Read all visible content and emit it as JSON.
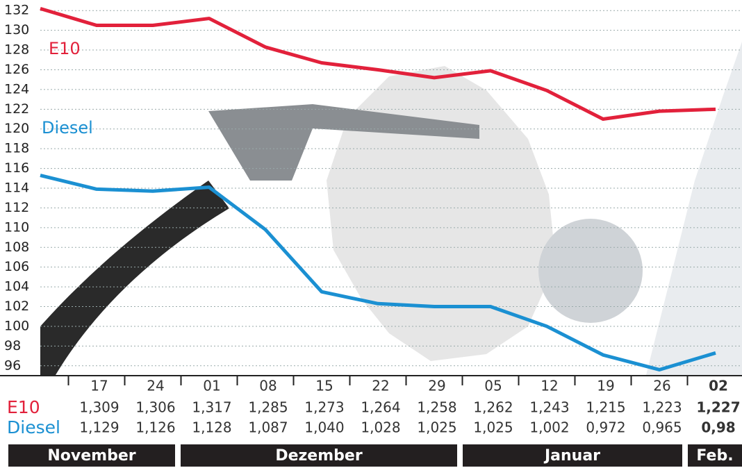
{
  "chart_data": {
    "type": "line",
    "categories": [
      null,
      "17",
      "24",
      "01",
      "08",
      "15",
      "22",
      "29",
      "05",
      "12",
      "19",
      "26",
      "02"
    ],
    "series": [
      {
        "name": "E10",
        "color": "#e2213b",
        "values": [
          132.2,
          130.5,
          130.5,
          131.2,
          128.3,
          126.7,
          126.0,
          125.2,
          125.9,
          123.9,
          121.0,
          121.8,
          122.0
        ]
      },
      {
        "name": "Diesel",
        "color": "#1b90d2",
        "values": [
          115.3,
          113.9,
          113.7,
          114.1,
          109.8,
          103.5,
          102.3,
          102.0,
          102.0,
          100.0,
          97.1,
          95.6,
          97.3
        ]
      }
    ],
    "ylim": [
      95,
      133
    ],
    "yticks": [
      96,
      98,
      100,
      102,
      104,
      106,
      108,
      110,
      112,
      114,
      116,
      118,
      120,
      122,
      124,
      126,
      128,
      130,
      132
    ],
    "grid": true
  },
  "table": {
    "rows": [
      {
        "label": "E10",
        "values": [
          "1,309",
          "1,306",
          "1,317",
          "1,285",
          "1,273",
          "1,264",
          "1,258",
          "1,262",
          "1,243",
          "1,215",
          "1,223",
          "1,227"
        ]
      },
      {
        "label": "Diesel",
        "values": [
          "1,129",
          "1,126",
          "1,128",
          "1,087",
          "1,040",
          "1,028",
          "1,025",
          "1,025",
          "1,002",
          "0,972",
          "0,965",
          "0,98"
        ]
      }
    ],
    "months": [
      "November",
      "Dezember",
      "Januar",
      "Feb."
    ]
  }
}
